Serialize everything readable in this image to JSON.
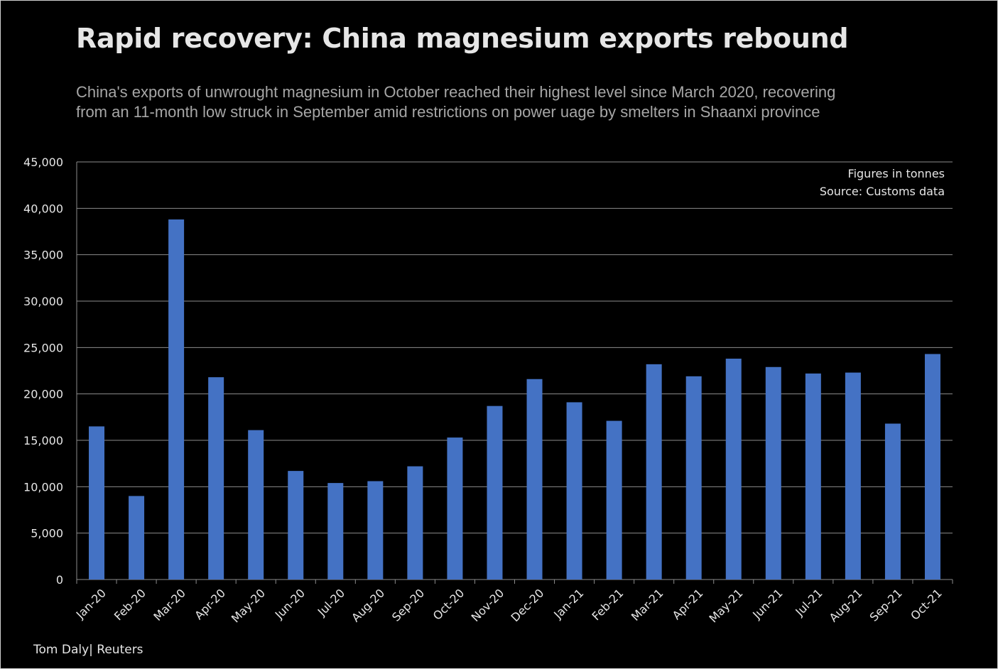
{
  "title": "Rapid recovery: China magnesium exports rebound",
  "subtitle_lines": [
    "China's exports of unwrought  magnesium  in October reached their highest level since March 2020, recovering",
    "from an 11-month low struck in September amid restrictions on power uage by smelters in Shaanxi province"
  ],
  "credit": "Tom Daly| Reuters",
  "colors": {
    "bar": "#4472C4",
    "background": "#000000",
    "grid": "#8c8c8c",
    "text": "#e6e6e6"
  },
  "chart_data": {
    "type": "bar",
    "title": "Rapid recovery: China magnesium exports rebound",
    "xlabel": "",
    "ylabel": "",
    "ylim": [
      0,
      45000
    ],
    "yticks": [
      0,
      5000,
      10000,
      15000,
      20000,
      25000,
      30000,
      35000,
      40000,
      45000
    ],
    "ytick_labels": [
      "0",
      "5,000",
      "10,000",
      "15,000",
      "20,000",
      "25,000",
      "30,000",
      "35,000",
      "40,000",
      "45,000"
    ],
    "grid": true,
    "annotations": [
      "Figures in tonnes",
      "Source: Customs data"
    ],
    "categories": [
      "Jan-20",
      "Feb-20",
      "Mar-20",
      "Apr-20",
      "May-20",
      "Jun-20",
      "Jul-20",
      "Aug-20",
      "Sep-20",
      "Oct-20",
      "Nov-20",
      "Dec-20",
      "Jan-21",
      "Feb-21",
      "Mar-21",
      "Apr-21",
      "May-21",
      "Jun-21",
      "Jul-21",
      "Aug-21",
      "Sep-21",
      "Oct-21"
    ],
    "values": [
      16500,
      9000,
      38800,
      21800,
      16100,
      11700,
      10400,
      10600,
      12200,
      15300,
      18700,
      21600,
      19100,
      17100,
      23200,
      21900,
      23800,
      22900,
      22200,
      22300,
      16800,
      24300
    ]
  }
}
